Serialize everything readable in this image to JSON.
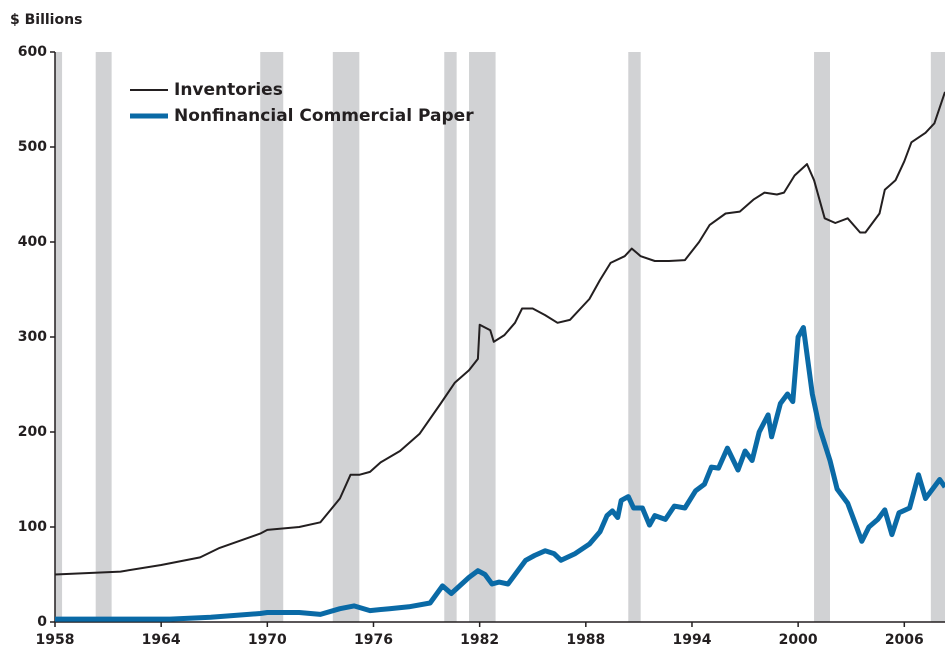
{
  "chart_data": {
    "type": "line",
    "y_label": "$ Billions",
    "xlim": [
      1958,
      2008.3
    ],
    "xticks": [
      1958,
      1964,
      1970,
      1976,
      1982,
      1988,
      1994,
      2000,
      2006
    ],
    "ylim": [
      0,
      600
    ],
    "yticks": [
      0,
      100,
      200,
      300,
      400,
      500,
      600
    ],
    "recession_color": "#d1d2d4",
    "recessions": [
      [
        1958,
        1958.4
      ],
      [
        1960.3,
        1961.2
      ],
      [
        1969.6,
        1970.9
      ],
      [
        1973.7,
        1975.2
      ],
      [
        1980,
        1980.7
      ],
      [
        1981.4,
        1982.9
      ],
      [
        1990.4,
        1991.1
      ],
      [
        2000.9,
        2001.8
      ],
      [
        2007.5,
        2008.3
      ]
    ],
    "series": [
      {
        "name": "Inventories",
        "color": "#231f20",
        "width": 2,
        "x": [
          1958,
          1961.7,
          1964,
          1966.2,
          1967.3,
          1969.6,
          1970,
          1971.8,
          1973,
          1974.1,
          1974.7,
          1975.2,
          1975.8,
          1976.4,
          1977.5,
          1978.6,
          1979.8,
          1980.6,
          1981.4,
          1981.9,
          1982,
          1982.6,
          1982.8,
          1983.4,
          1984,
          1984.4,
          1985,
          1985.7,
          1986.4,
          1987.1,
          1988.2,
          1988.8,
          1989.4,
          1990.2,
          1990.6,
          1991.1,
          1991.9,
          1992.7,
          1993.6,
          1994.4,
          1995,
          1995.9,
          1996.7,
          1997.5,
          1998.1,
          1998.8,
          1999.2,
          1999.8,
          2000.5,
          2000.9,
          2001.5,
          2002.1,
          2002.8,
          2003.5,
          2003.8,
          2004.6,
          2004.9,
          2005.5,
          2006,
          2006.4,
          2007.2,
          2007.7,
          2008.3
        ],
        "values": [
          50,
          53,
          60,
          68,
          78,
          93,
          97,
          100,
          105,
          130,
          155,
          155,
          158,
          168,
          180,
          198,
          230,
          252,
          265,
          277,
          313,
          307,
          295,
          302,
          315,
          330,
          330,
          323,
          315,
          318,
          340,
          360,
          378,
          385,
          393,
          385,
          380,
          380,
          381,
          400,
          418,
          430,
          432,
          445,
          452,
          450,
          452,
          470,
          482,
          465,
          425,
          420,
          425,
          410,
          410,
          430,
          455,
          465,
          485,
          505,
          515,
          525,
          558
        ]
      },
      {
        "name": "Nonfinancial Commercial Paper",
        "color": "#0a6aa6",
        "width": 5,
        "x": [
          1958,
          1964.5,
          1966.8,
          1969.6,
          1970,
          1971.8,
          1973,
          1974.1,
          1974.9,
          1975.8,
          1976.9,
          1978,
          1979.2,
          1979.9,
          1980.4,
          1981.4,
          1981.9,
          1982.3,
          1982.7,
          1983.1,
          1983.6,
          1984.2,
          1984.6,
          1985.1,
          1985.7,
          1986.2,
          1986.6,
          1987.4,
          1988.2,
          1988.8,
          1989.2,
          1989.5,
          1989.8,
          1990,
          1990.4,
          1990.7,
          1991.2,
          1991.6,
          1991.9,
          1992.5,
          1993,
          1993.6,
          1994.2,
          1994.7,
          1995.1,
          1995.5,
          1996,
          1996.6,
          1997,
          1997.4,
          1997.8,
          1998.3,
          1998.5,
          1999,
          1999.4,
          1999.7,
          2000,
          2000.3,
          2000.8,
          2001.2,
          2001.8,
          2002.2,
          2002.8,
          2003.2,
          2003.6,
          2004,
          2004.5,
          2004.9,
          2005.3,
          2005.7,
          2006.3,
          2006.8,
          2007.2,
          2007.6,
          2008,
          2008.3
        ],
        "values": [
          3,
          3,
          5,
          9,
          10,
          10,
          8,
          14,
          17,
          12,
          14,
          16,
          20,
          38,
          30,
          47,
          54,
          50,
          40,
          42,
          40,
          55,
          65,
          70,
          75,
          72,
          65,
          72,
          82,
          95,
          112,
          117,
          110,
          128,
          132,
          120,
          120,
          102,
          112,
          108,
          122,
          120,
          138,
          145,
          163,
          162,
          183,
          160,
          180,
          170,
          200,
          218,
          195,
          230,
          240,
          232,
          300,
          310,
          240,
          205,
          170,
          140,
          125,
          105,
          85,
          100,
          108,
          118,
          92,
          115,
          120,
          155,
          130,
          140,
          150,
          142
        ]
      }
    ]
  }
}
